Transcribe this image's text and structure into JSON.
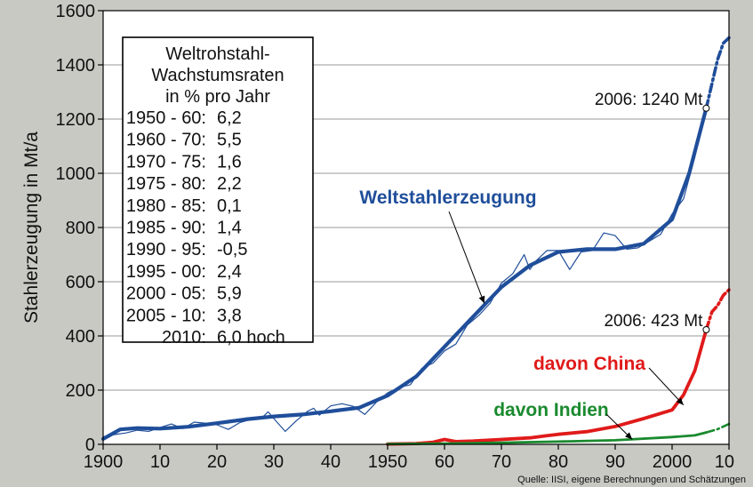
{
  "chart_data": {
    "type": "line",
    "ylabel": "Stahlerzeugung in Mt/a",
    "xlim": [
      1900,
      2010
    ],
    "ylim": [
      0,
      1600
    ],
    "yticks": [
      0,
      200,
      400,
      600,
      800,
      1000,
      1200,
      1400,
      1600
    ],
    "xticks": [
      {
        "value": 1900,
        "label": "1900"
      },
      {
        "value": 1910,
        "label": "10"
      },
      {
        "value": 1920,
        "label": "20"
      },
      {
        "value": 1930,
        "label": "30"
      },
      {
        "value": 1940,
        "label": "40"
      },
      {
        "value": 1950,
        "label": "1950"
      },
      {
        "value": 1960,
        "label": "60"
      },
      {
        "value": 1970,
        "label": "70"
      },
      {
        "value": 1980,
        "label": "80"
      },
      {
        "value": 1990,
        "label": "90"
      },
      {
        "value": 2000,
        "label": "2000"
      },
      {
        "value": 2010,
        "label": "10"
      }
    ],
    "grid": "horizontal",
    "inset_box": {
      "title_lines": [
        "Weltrohstahl-",
        "Wachstumsraten",
        "in % pro Jahr"
      ],
      "rows": [
        {
          "period": "1950 - 60:",
          "rate": "6,2"
        },
        {
          "period": "1960 - 70:",
          "rate": "5,5"
        },
        {
          "period": "1970 - 75:",
          "rate": "1,6"
        },
        {
          "period": "1975 - 80:",
          "rate": "2,2"
        },
        {
          "period": "1980 - 85:",
          "rate": "0,1"
        },
        {
          "period": "1985 - 90:",
          "rate": "1,4"
        },
        {
          "period": "1990 - 95:",
          "rate": "-0,5"
        },
        {
          "period": "1995 - 00:",
          "rate": "2,4"
        },
        {
          "period": "2000 - 05:",
          "rate": "5,9"
        },
        {
          "period": "2005 - 10:",
          "rate": "3,8"
        },
        {
          "period": "2010:",
          "rate": "6,0 hoch"
        }
      ]
    },
    "series": [
      {
        "name": "Weltstahlerzeugung",
        "kind": "annual",
        "color": "#1f4e9a",
        "x": [
          1900,
          1902,
          1904,
          1906,
          1908,
          1910,
          1912,
          1914,
          1916,
          1918,
          1920,
          1922,
          1924,
          1926,
          1928,
          1929,
          1930,
          1932,
          1934,
          1936,
          1937,
          1938,
          1940,
          1942,
          1944,
          1946,
          1948,
          1950,
          1952,
          1954,
          1956,
          1958,
          1960,
          1962,
          1964,
          1966,
          1968,
          1970,
          1972,
          1974,
          1975,
          1976,
          1978,
          1980,
          1982,
          1984,
          1986,
          1988,
          1990,
          1992,
          1994,
          1996,
          1998,
          2000,
          2002,
          2004,
          2006
        ],
        "y": [
          28,
          36,
          42,
          52,
          48,
          62,
          75,
          58,
          82,
          78,
          72,
          55,
          80,
          92,
          100,
          120,
          95,
          48,
          88,
          123,
          133,
          108,
          142,
          150,
          140,
          110,
          155,
          190,
          210,
          220,
          280,
          300,
          345,
          370,
          440,
          475,
          520,
          595,
          630,
          700,
          645,
          675,
          715,
          715,
          645,
          710,
          715,
          780,
          770,
          720,
          725,
          750,
          775,
          850,
          905,
          1060,
          1240
        ]
      },
      {
        "name": "Weltstahlerzeugung",
        "kind": "trend",
        "color": "#1f4e9a",
        "x": [
          1900,
          1903,
          1906,
          1910,
          1915,
          1920,
          1925,
          1930,
          1935,
          1940,
          1945,
          1950,
          1955,
          1960,
          1965,
          1970,
          1975,
          1980,
          1985,
          1990,
          1995,
          2000,
          2003,
          2006
        ],
        "y": [
          20,
          55,
          60,
          58,
          65,
          78,
          92,
          103,
          110,
          122,
          135,
          180,
          250,
          360,
          470,
          580,
          660,
          710,
          720,
          720,
          740,
          830,
          1000,
          1240
        ]
      },
      {
        "name": "Weltstahlerzeugung",
        "kind": "forecast",
        "color": "#1f4e9a",
        "x": [
          2006,
          2007,
          2008,
          2009,
          2010
        ],
        "y": [
          1240,
          1330,
          1420,
          1480,
          1500
        ]
      },
      {
        "name": "davon China",
        "kind": "annual",
        "color": "#e01a1a",
        "x": [
          1950,
          1955,
          1958,
          1960,
          1962,
          1965,
          1970,
          1975,
          1978,
          1980,
          1985,
          1990,
          1995,
          2000,
          2002,
          2004,
          2006
        ],
        "y": [
          1,
          3,
          8,
          18,
          10,
          12,
          18,
          24,
          32,
          37,
          47,
          66,
          95,
          127,
          182,
          272,
          423
        ]
      },
      {
        "name": "davon China",
        "kind": "forecast",
        "color": "#e01a1a",
        "x": [
          2006,
          2007,
          2008,
          2009,
          2010
        ],
        "y": [
          423,
          489,
          512,
          550,
          570
        ]
      },
      {
        "name": "davon Indien",
        "kind": "annual",
        "color": "#1a8a2e",
        "x": [
          1950,
          1960,
          1970,
          1980,
          1990,
          2000,
          2004,
          2006
        ],
        "y": [
          1,
          3,
          6,
          10,
          15,
          27,
          33,
          44
        ]
      },
      {
        "name": "davon Indien",
        "kind": "forecast",
        "color": "#1a8a2e",
        "x": [
          2006,
          2008,
          2010
        ],
        "y": [
          44,
          56,
          75
        ]
      }
    ],
    "series_labels": [
      {
        "text": "Weltstahlerzeugung",
        "color": "#1f4e9a",
        "point_at": [
          1967,
          520
        ]
      },
      {
        "text": "davon China",
        "color": "#e01a1a",
        "point_at": [
          2002,
          145
        ]
      },
      {
        "text": "davon Indien",
        "color": "#1a8a2e",
        "point_at": [
          1993,
          18
        ]
      }
    ],
    "annotations": [
      {
        "text": "2006: 1240 Mt",
        "x": 2006,
        "y": 1240
      },
      {
        "text": "2006: 423 Mt",
        "x": 2006,
        "y": 423
      }
    ],
    "source": "Quelle: IISI, eigene Berechnungen und Schätzungen"
  }
}
